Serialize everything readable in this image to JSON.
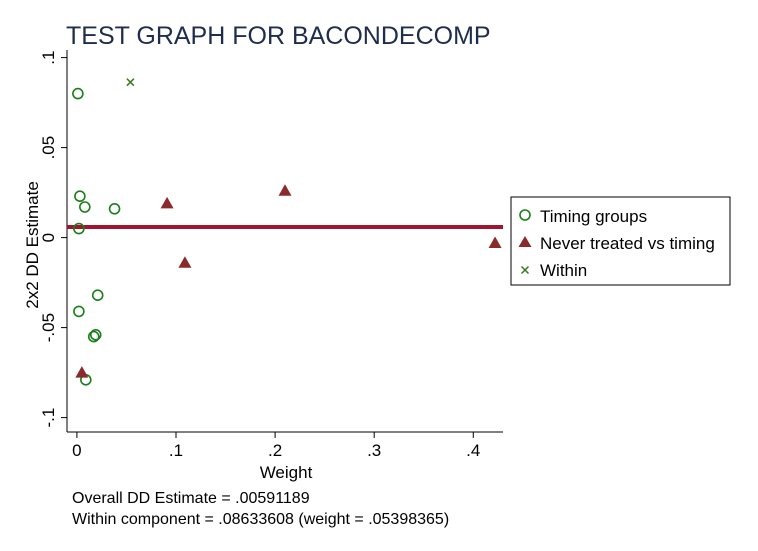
{
  "chart_data": {
    "type": "scatter",
    "title": "TEST GRAPH FOR BACONDECOMP",
    "xlabel": "Weight",
    "ylabel": "2x2 DD Estimate",
    "xlim": [
      -0.01,
      0.43
    ],
    "ylim": [
      -0.108,
      0.102
    ],
    "xticks": [
      0,
      0.1,
      0.2,
      0.3,
      0.4
    ],
    "xtick_labels": [
      "0",
      ".1",
      ".2",
      ".3",
      ".4"
    ],
    "yticks": [
      -0.1,
      -0.05,
      0,
      0.05,
      0.1
    ],
    "ytick_labels": [
      "-.1",
      "-.05",
      "0",
      ".05",
      ".1"
    ],
    "grid": false,
    "legend_position": "right",
    "reference_line": {
      "y": 0.00591189,
      "color": "#a0142e"
    },
    "series": [
      {
        "name": "Timing groups",
        "marker": "circle",
        "color": "#1a7f1a",
        "points": [
          {
            "x": 0.001,
            "y": 0.08
          },
          {
            "x": 0.003,
            "y": 0.023
          },
          {
            "x": 0.008,
            "y": 0.017
          },
          {
            "x": 0.038,
            "y": 0.016
          },
          {
            "x": 0.002,
            "y": 0.005
          },
          {
            "x": 0.021,
            "y": -0.032
          },
          {
            "x": 0.002,
            "y": -0.041
          },
          {
            "x": 0.019,
            "y": -0.054
          },
          {
            "x": 0.017,
            "y": -0.055
          },
          {
            "x": 0.009,
            "y": -0.079
          }
        ]
      },
      {
        "name": "Never treated vs timing",
        "marker": "triangle",
        "color": "#8b2a2a",
        "points": [
          {
            "x": 0.091,
            "y": 0.019
          },
          {
            "x": 0.21,
            "y": 0.026
          },
          {
            "x": 0.109,
            "y": -0.014
          },
          {
            "x": 0.422,
            "y": -0.003
          },
          {
            "x": 0.005,
            "y": -0.075
          }
        ]
      },
      {
        "name": "Within",
        "marker": "x",
        "color": "#3a7a1f",
        "points": [
          {
            "x": 0.05398365,
            "y": 0.08633608
          }
        ]
      }
    ],
    "notes": [
      "Overall DD Estimate = .00591189",
      "Within component = .08633608 (weight = .05398365)"
    ],
    "title_color": "#1f2d4d"
  }
}
